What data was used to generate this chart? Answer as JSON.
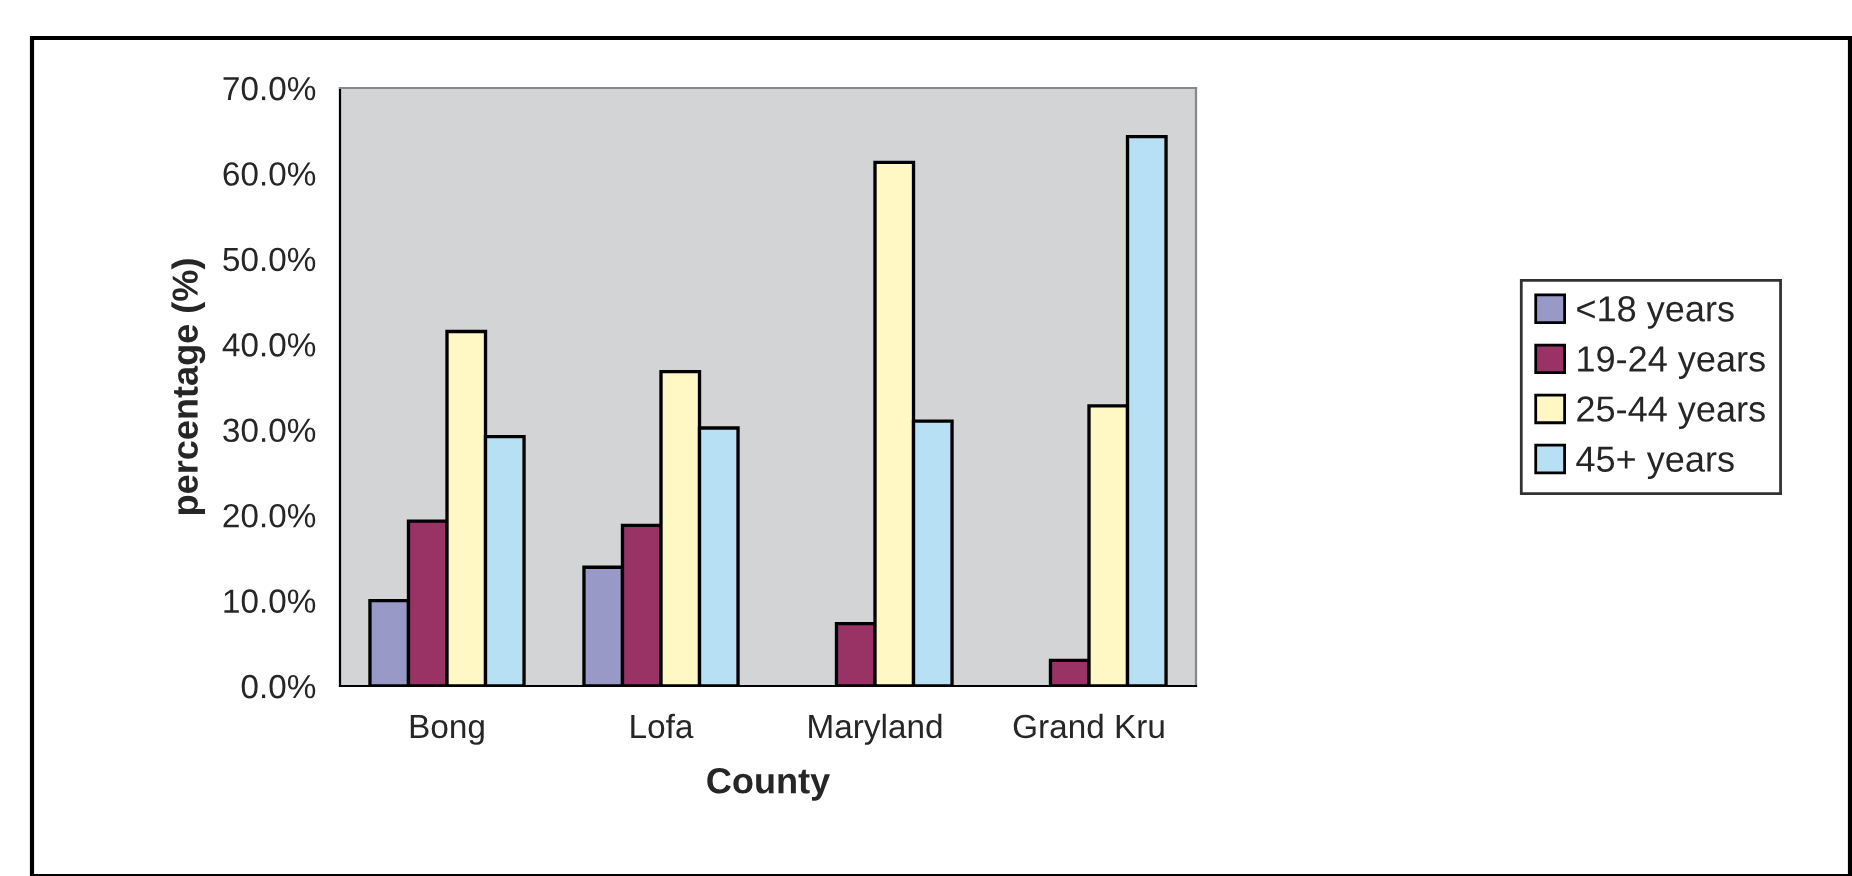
{
  "chart_data": {
    "type": "bar",
    "xlabel": "County",
    "ylabel": "percentage (%)",
    "categories": [
      "Bong",
      "Lofa",
      "Maryland",
      "Grand Kru"
    ],
    "series": [
      {
        "name": "<18 years",
        "color": "#9999c8",
        "values": [
          10.0,
          13.9,
          null,
          null
        ]
      },
      {
        "name": "19-24 years",
        "color": "#993366",
        "values": [
          19.3,
          18.8,
          7.3,
          3.0
        ]
      },
      {
        "name": "25-44 years",
        "color": "#fff8c4",
        "values": [
          41.5,
          36.8,
          61.3,
          32.8
        ]
      },
      {
        "name": "45+ years",
        "color": "#b8e0f4",
        "values": [
          29.2,
          30.2,
          31.0,
          64.3
        ]
      }
    ],
    "ylim": [
      0,
      70
    ],
    "yticks": [
      {
        "value": 0,
        "label": "0.0%"
      },
      {
        "value": 10,
        "label": "10.0%"
      },
      {
        "value": 20,
        "label": "20.0%"
      },
      {
        "value": 30,
        "label": "30.0%"
      },
      {
        "value": 40,
        "label": "40.0%"
      },
      {
        "value": 50,
        "label": "50.0%"
      },
      {
        "value": 60,
        "label": "60.0%"
      },
      {
        "value": 70,
        "label": "70.0%"
      }
    ],
    "grid": false,
    "legend": "right"
  }
}
